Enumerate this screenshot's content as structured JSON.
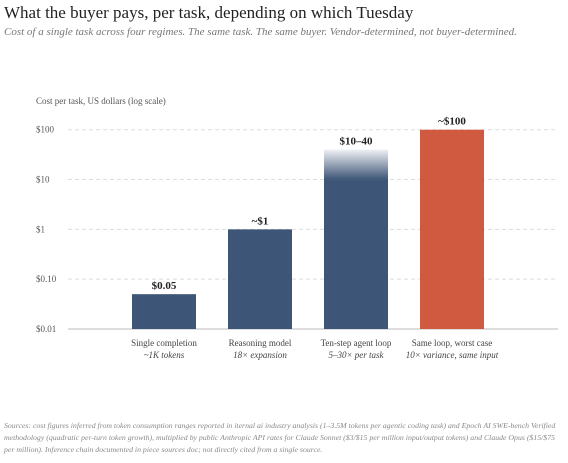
{
  "chart_data": {
    "type": "bar",
    "title": "What the buyer pays, per task, depending on which Tuesday",
    "subtitle": "Cost of a single task across four regimes. The same task. The same buyer. Vendor-determined, not buyer-determined.",
    "y_label": "Cost per task, US dollars (log scale)",
    "log_scale": true,
    "grid": true,
    "categories": [
      "Single completion",
      "Reasoning model",
      "Ten-step agent loop",
      "Same loop, worst case"
    ],
    "category_notes": [
      "~1K tokens",
      "18× expansion",
      "5–30× per task",
      "10× variance, same input"
    ],
    "values": [
      0.05,
      1,
      40,
      100
    ],
    "range_start": [
      null,
      null,
      10,
      null
    ],
    "value_labels": [
      "$0.05",
      "~$1",
      "$10–40",
      "~$100"
    ],
    "colors": [
      "#3d5577",
      "#3d5577",
      "#3d5577",
      "#cf5a40"
    ],
    "ylim": [
      0.01,
      180
    ],
    "yticks": [
      {
        "value": 0.01,
        "label": "$0.01"
      },
      {
        "value": 0.1,
        "label": "$0.10"
      },
      {
        "value": 1,
        "label": "$1"
      },
      {
        "value": 10,
        "label": "$10"
      },
      {
        "value": 100,
        "label": "$100"
      }
    ],
    "sources": "Sources: cost figures inferred from token consumption ranges reported in iternal ai industry analysis (1–3.5M tokens per agentic coding task) and Epoch AI SWE-bench Verified methodology (quadratic per-turn token growth), multiplied by public Anthropic API rates for Claude Sonnet ($3/$15 per million input/output tokens) and Claude Opus ($15/$75 per million). Inference chain documented in piece sources doc; not directly cited from a single source."
  }
}
